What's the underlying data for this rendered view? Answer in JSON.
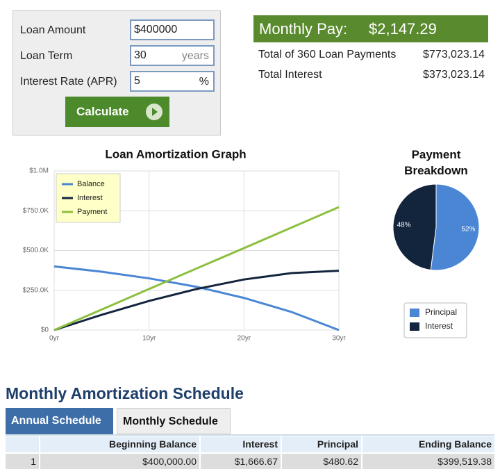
{
  "form": {
    "fields": [
      {
        "label": "Loan Amount",
        "value": "$400000"
      },
      {
        "label": "Loan Term",
        "value": "30",
        "unit": "years"
      },
      {
        "label": "Interest Rate (APR)",
        "value": "5",
        "unit": "%"
      }
    ],
    "button": "Calculate"
  },
  "summary": {
    "monthly_label": "Monthly Pay:",
    "monthly_value": "$2,147.29",
    "rows": [
      [
        "Total of 360 Loan Payments",
        "$773,023.14"
      ],
      [
        "Total Interest",
        "$373,023.14"
      ]
    ]
  },
  "chart_data": [
    {
      "type": "line",
      "title": "Loan Amortization Graph",
      "x": [
        0,
        5,
        10,
        15,
        20,
        25,
        30
      ],
      "xlim": [
        0,
        30
      ],
      "xticks": [
        {
          "value": 0,
          "label": "0yr"
        },
        {
          "value": 10,
          "label": "10yr"
        },
        {
          "value": 20,
          "label": "20yr"
        },
        {
          "value": 30,
          "label": "30yr"
        }
      ],
      "ylim": [
        0,
        1000000
      ],
      "yticks": [
        {
          "value": 0,
          "label": "$0"
        },
        {
          "value": 250000,
          "label": "$250.0K"
        },
        {
          "value": 500000,
          "label": "$500.0K"
        },
        {
          "value": 750000,
          "label": "$750.0K"
        },
        {
          "value": 1000000,
          "label": "$1.0M"
        }
      ],
      "grid": true,
      "legend": "top-left",
      "series": [
        {
          "name": "Balance",
          "color": "#4a86d4",
          "values": [
            400000,
            367000,
            325000,
            272000,
            202000,
            114000,
            0
          ]
        },
        {
          "name": "Interest",
          "color": "#13243d",
          "values": [
            0,
            96000,
            183000,
            258000,
            318000,
            358000,
            373000
          ]
        },
        {
          "name": "Payment",
          "color": "#8dbf3f",
          "values": [
            0,
            129000,
            258000,
            387000,
            515000,
            644000,
            773000
          ]
        }
      ]
    },
    {
      "type": "pie",
      "title": "Payment Breakdown",
      "categories": [
        "Principal",
        "Interest"
      ],
      "values": [
        52,
        48
      ],
      "value_labels": [
        "52%",
        "48%"
      ],
      "colors": [
        "#4a86d4",
        "#13243d"
      ],
      "legend": "bottom"
    }
  ],
  "schedule": {
    "title": "Monthly Amortization Schedule",
    "tabs": [
      "Annual Schedule",
      "Monthly Schedule"
    ],
    "columns": [
      "Beginning Balance",
      "Interest",
      "Principal",
      "Ending Balance"
    ],
    "rows": [
      [
        "1",
        "$400,000.00",
        "$1,666.67",
        "$480.62",
        "$399,519.38"
      ]
    ]
  }
}
